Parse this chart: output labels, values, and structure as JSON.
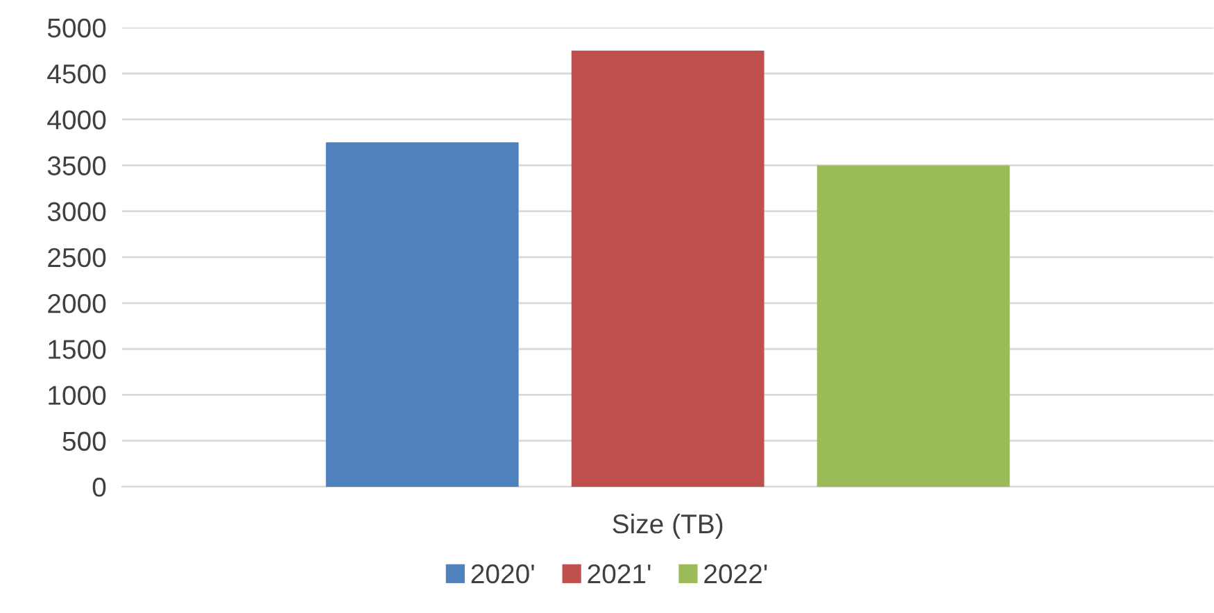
{
  "chart_data": {
    "type": "bar",
    "categories": [
      "Size (TB)"
    ],
    "series": [
      {
        "name": "2020'",
        "color": "#4f81bd",
        "values": [
          3750
        ]
      },
      {
        "name": "2021'",
        "color": "#c0504d",
        "values": [
          4750
        ]
      },
      {
        "name": "2022'",
        "color": "#9bbb59",
        "values": [
          3500
        ]
      }
    ],
    "ylim": [
      0,
      5000
    ],
    "yticks": [
      0,
      500,
      1000,
      1500,
      2000,
      2500,
      3000,
      3500,
      4000,
      4500,
      5000
    ],
    "grid": "y",
    "legend": "bottom"
  }
}
